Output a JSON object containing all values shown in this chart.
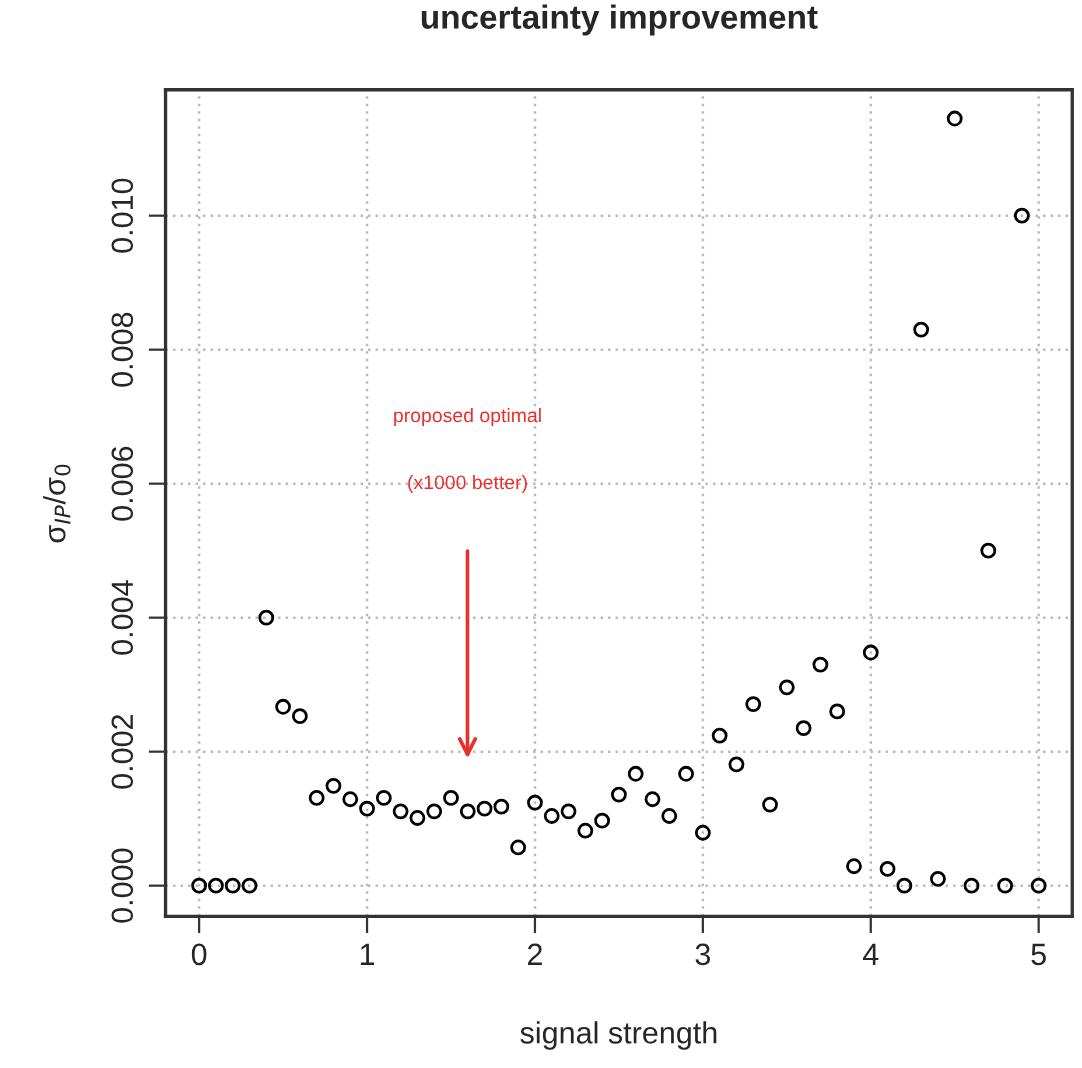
{
  "chart_data": {
    "type": "scatter",
    "title": "uncertainty improvement",
    "xlabel": "signal strength",
    "ylabel": "σ$_{IP}$/σ$_{0}$",
    "x": [
      0,
      0.1,
      0.2,
      0.3,
      0.4,
      0.5,
      0.6,
      0.7,
      0.8,
      0.9,
      1.0,
      1.1,
      1.2,
      1.3,
      1.4,
      1.5,
      1.6,
      1.7,
      1.8,
      1.9,
      2.0,
      2.1,
      2.2,
      2.3,
      2.4,
      2.5,
      2.6,
      2.7,
      2.8,
      2.9,
      3.0,
      3.1,
      3.2,
      3.3,
      3.4,
      3.5,
      3.6,
      3.7,
      3.8,
      3.9,
      4.0,
      4.1,
      4.2,
      4.3,
      4.4,
      4.5,
      4.6,
      4.7,
      4.8,
      4.9,
      5.0
    ],
    "series": [
      {
        "color": "#000000",
        "values": [
          0,
          0,
          0,
          0,
          0.004,
          0.00267,
          0.00253,
          0.00131,
          0.00149,
          0.00129,
          0.00115,
          0.00131,
          0.00111,
          0.00101,
          0.00111,
          0.00131,
          0.00111,
          0.00115,
          0.00118,
          0.00057,
          0.00124,
          0.00104,
          0.00111,
          0.00082,
          0.00097,
          0.00136,
          0.00167,
          0.00129,
          0.00104,
          0.00167,
          0.00079,
          0.00224,
          0.00181,
          0.00271,
          0.00121,
          0.00296,
          0.00235,
          0.0033,
          0.0026,
          0.00029,
          0.00348,
          0.00025,
          0,
          0.0083,
          0.0001,
          0.01145,
          0.0,
          0.005,
          0,
          0.01,
          0
        ]
      }
    ],
    "marker": "circle",
    "xlim": [
      -0.2,
      5.2
    ],
    "xticks": [
      0,
      1,
      2,
      3,
      4,
      5
    ],
    "ylim": [
      -0.000458,
      0.01188
    ],
    "yticks": [
      {
        "value": 0,
        "label": "0.000"
      },
      {
        "value": 0.002,
        "label": "0.002"
      },
      {
        "value": 0.004,
        "label": "0.004"
      },
      {
        "value": 0.006,
        "label": "0.006"
      },
      {
        "value": 0.008,
        "label": "0.008"
      },
      {
        "value": 0.01,
        "label": "0.010"
      }
    ],
    "grid": true,
    "annotations": [
      "proposed optimal",
      "(x1000 better)"
    ]
  }
}
